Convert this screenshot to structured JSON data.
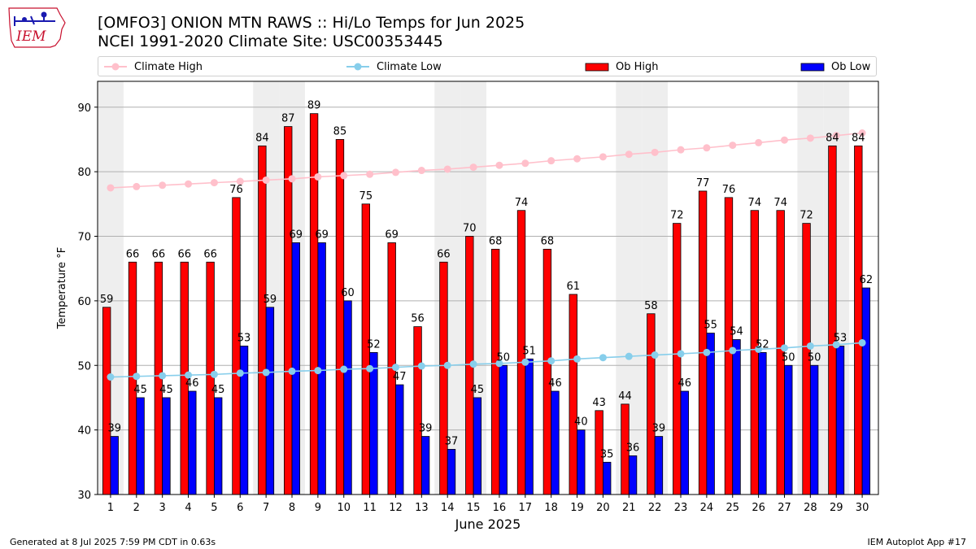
{
  "logo": {
    "text": "IEM"
  },
  "title": {
    "line1": "[OMFO3] ONION MTN RAWS :: Hi/Lo Temps for Jun 2025",
    "line2": "NCEI 1991-2020 Climate Site: USC00353445"
  },
  "legend": {
    "climate_high": "Climate High",
    "climate_low": "Climate Low",
    "ob_high": "Ob High",
    "ob_low": "Ob Low"
  },
  "colors": {
    "ob_high": "#ff0000",
    "ob_low": "#0000ff",
    "climate_high": "#ffc0cb",
    "climate_low": "#87ceeb",
    "weekend_shade": "#eeeeee",
    "grid": "#b0b0b0"
  },
  "chart_data": {
    "type": "bar",
    "xlabel": "June 2025",
    "ylabel": "Temperature °F",
    "ylim": [
      30,
      94
    ],
    "yticks": [
      30,
      40,
      50,
      60,
      70,
      80,
      90
    ],
    "grid": "horizontal",
    "categories": [
      "1",
      "2",
      "3",
      "4",
      "5",
      "6",
      "7",
      "8",
      "9",
      "10",
      "11",
      "12",
      "13",
      "14",
      "15",
      "16",
      "17",
      "18",
      "19",
      "20",
      "21",
      "22",
      "23",
      "24",
      "25",
      "26",
      "27",
      "28",
      "29",
      "30"
    ],
    "weekend_days": [
      1,
      7,
      8,
      14,
      15,
      21,
      22,
      28,
      29
    ],
    "series": [
      {
        "name": "Ob High",
        "type": "bar",
        "values": [
          59,
          66,
          66,
          66,
          66,
          76,
          84,
          87,
          89,
          85,
          75,
          69,
          56,
          66,
          70,
          68,
          74,
          68,
          61,
          43,
          44,
          58,
          72,
          77,
          76,
          74,
          74,
          72,
          84,
          84
        ]
      },
      {
        "name": "Ob Low",
        "type": "bar",
        "values": [
          39,
          45,
          45,
          46,
          45,
          53,
          59,
          69,
          69,
          60,
          52,
          47,
          39,
          37,
          45,
          50,
          51,
          46,
          40,
          35,
          36,
          39,
          46,
          55,
          54,
          52,
          50,
          50,
          53,
          62
        ]
      },
      {
        "name": "Climate High",
        "type": "line",
        "values": [
          77.5,
          77.7,
          77.9,
          78.1,
          78.3,
          78.5,
          78.7,
          78.9,
          79.2,
          79.4,
          79.6,
          79.9,
          80.2,
          80.4,
          80.7,
          81.0,
          81.3,
          81.7,
          82.0,
          82.3,
          82.7,
          83.0,
          83.4,
          83.7,
          84.1,
          84.5,
          84.9,
          85.2,
          85.6,
          86.0
        ]
      },
      {
        "name": "Climate Low",
        "type": "line",
        "values": [
          48.2,
          48.3,
          48.4,
          48.5,
          48.6,
          48.8,
          48.9,
          49.1,
          49.2,
          49.4,
          49.5,
          49.7,
          49.9,
          50.0,
          50.2,
          50.3,
          50.5,
          50.7,
          51.0,
          51.2,
          51.4,
          51.6,
          51.8,
          52.0,
          52.3,
          52.5,
          52.7,
          53.0,
          53.2,
          53.5
        ]
      }
    ]
  },
  "footer": {
    "left": "Generated at 8 Jul 2025 7:59 PM CDT in 0.63s",
    "right": "IEM Autoplot App #17"
  }
}
